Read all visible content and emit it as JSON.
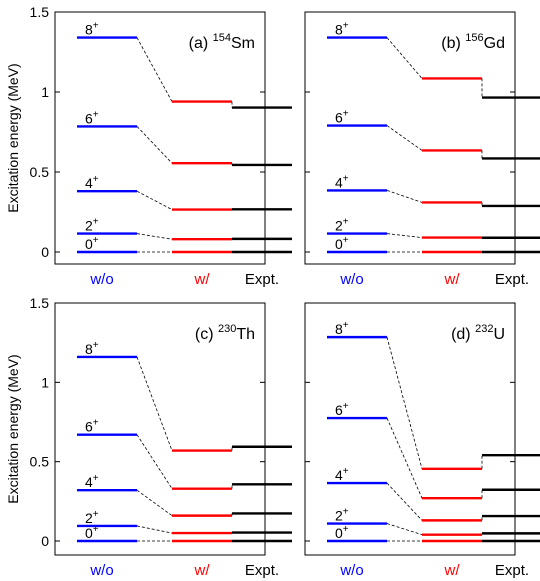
{
  "figure": {
    "ylabel": "Excitation energy (MeV)",
    "y_ticks": [
      0,
      0.5,
      1,
      1.5
    ],
    "y_tick_labels": [
      "0",
      "0.5",
      "1",
      "1.5"
    ],
    "ylim": [
      0,
      1.5
    ],
    "column_labels": [
      "w/o",
      "w/",
      "Expt."
    ],
    "column_colors": [
      "#0000ff",
      "#ff0000",
      "#000000"
    ],
    "connector_style": "dashed"
  },
  "chart_data": [
    {
      "type": "level-scheme",
      "panel": "a",
      "label_prefix": "(a) ",
      "mass": "154",
      "element": "Sm",
      "levels": [
        {
          "spin": "0",
          "parity": "+",
          "wo": 0.0,
          "w": 0.0,
          "expt": 0.0
        },
        {
          "spin": "2",
          "parity": "+",
          "wo": 0.115,
          "w": 0.08,
          "expt": 0.082
        },
        {
          "spin": "4",
          "parity": "+",
          "wo": 0.38,
          "w": 0.265,
          "expt": 0.267
        },
        {
          "spin": "6",
          "parity": "+",
          "wo": 0.785,
          "w": 0.555,
          "expt": 0.544
        },
        {
          "spin": "8",
          "parity": "+",
          "wo": 1.34,
          "w": 0.94,
          "expt": 0.903
        }
      ]
    },
    {
      "type": "level-scheme",
      "panel": "b",
      "label_prefix": "(b) ",
      "mass": "156",
      "element": "Gd",
      "levels": [
        {
          "spin": "0",
          "parity": "+",
          "wo": 0.0,
          "w": 0.0,
          "expt": 0.0
        },
        {
          "spin": "2",
          "parity": "+",
          "wo": 0.115,
          "w": 0.09,
          "expt": 0.089
        },
        {
          "spin": "4",
          "parity": "+",
          "wo": 0.385,
          "w": 0.31,
          "expt": 0.288
        },
        {
          "spin": "6",
          "parity": "+",
          "wo": 0.79,
          "w": 0.635,
          "expt": 0.585
        },
        {
          "spin": "8",
          "parity": "+",
          "wo": 1.34,
          "w": 1.085,
          "expt": 0.965
        }
      ]
    },
    {
      "type": "level-scheme",
      "panel": "c",
      "label_prefix": "(c) ",
      "mass": "230",
      "element": "Th",
      "levels": [
        {
          "spin": "0",
          "parity": "+",
          "wo": 0.0,
          "w": 0.0,
          "expt": 0.0
        },
        {
          "spin": "2",
          "parity": "+",
          "wo": 0.095,
          "w": 0.05,
          "expt": 0.053
        },
        {
          "spin": "4",
          "parity": "+",
          "wo": 0.32,
          "w": 0.16,
          "expt": 0.174
        },
        {
          "spin": "6",
          "parity": "+",
          "wo": 0.67,
          "w": 0.33,
          "expt": 0.357
        },
        {
          "spin": "8",
          "parity": "+",
          "wo": 1.16,
          "w": 0.57,
          "expt": 0.594
        }
      ]
    },
    {
      "type": "level-scheme",
      "panel": "d",
      "label_prefix": "(d) ",
      "mass": "232",
      "element": "U",
      "levels": [
        {
          "spin": "0",
          "parity": "+",
          "wo": 0.0,
          "w": 0.0,
          "expt": 0.0
        },
        {
          "spin": "2",
          "parity": "+",
          "wo": 0.11,
          "w": 0.04,
          "expt": 0.048
        },
        {
          "spin": "4",
          "parity": "+",
          "wo": 0.365,
          "w": 0.13,
          "expt": 0.157
        },
        {
          "spin": "6",
          "parity": "+",
          "wo": 0.775,
          "w": 0.27,
          "expt": 0.323
        },
        {
          "spin": "8",
          "parity": "+",
          "wo": 1.285,
          "w": 0.455,
          "expt": 0.541
        }
      ]
    }
  ]
}
